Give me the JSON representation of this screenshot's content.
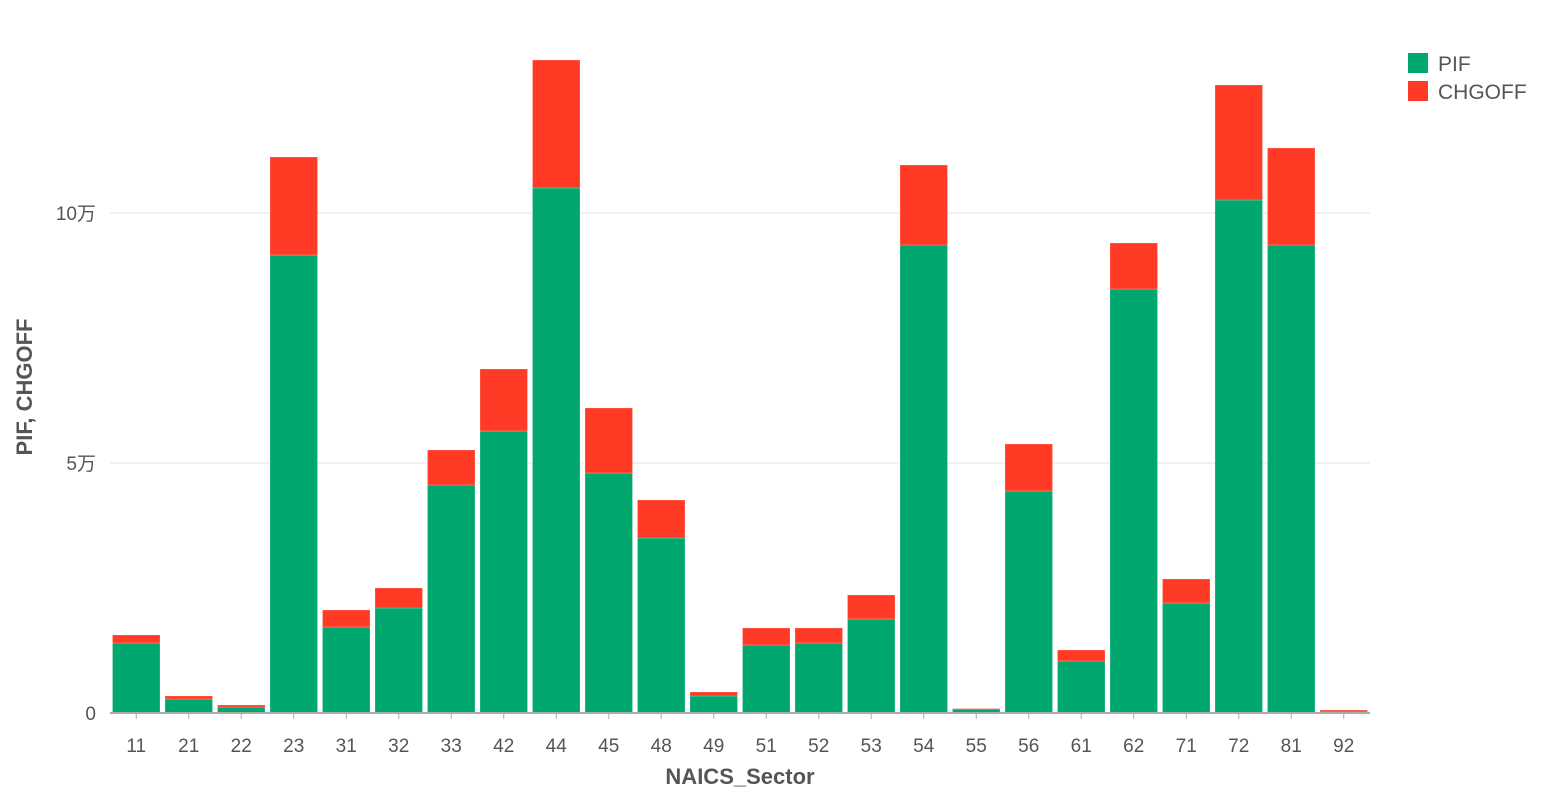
{
  "chart_data": {
    "type": "bar",
    "stacked": true,
    "xlabel": "NAICS_Sector",
    "ylabel": "PIF, CHGOFF",
    "ylim": [
      0,
      135000
    ],
    "yticks": [
      {
        "value": 0,
        "label": "0"
      },
      {
        "value": 50000,
        "label": "5万"
      },
      {
        "value": 100000,
        "label": "10万"
      }
    ],
    "grid": true,
    "legend_position": "top-right",
    "categories": [
      "11",
      "21",
      "22",
      "23",
      "31",
      "32",
      "33",
      "42",
      "44",
      "45",
      "48",
      "49",
      "51",
      "52",
      "53",
      "54",
      "55",
      "56",
      "61",
      "62",
      "71",
      "72",
      "81",
      "92"
    ],
    "series": [
      {
        "name": "PIF",
        "color": "#00a870",
        "values": [
          14000,
          2800,
          1200,
          91600,
          17200,
          21000,
          45600,
          56400,
          105000,
          48000,
          35000,
          3400,
          13600,
          14000,
          18800,
          93600,
          800,
          44400,
          10400,
          84800,
          22000,
          102600,
          93600,
          400
        ]
      },
      {
        "name": "CHGOFF",
        "color": "#ff3b26",
        "values": [
          1600,
          600,
          400,
          19600,
          3400,
          4000,
          7000,
          12400,
          25600,
          13000,
          7600,
          800,
          3400,
          3000,
          4800,
          16000,
          100,
          9400,
          2200,
          9200,
          4800,
          23000,
          19400,
          200
        ]
      }
    ]
  }
}
